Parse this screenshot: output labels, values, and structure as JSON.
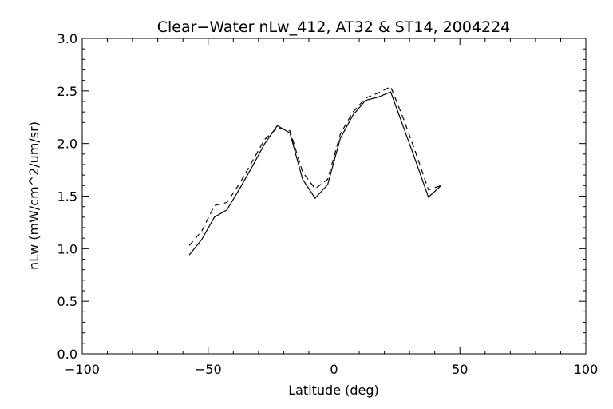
{
  "chart_data": {
    "type": "line",
    "title": "Clear−Water nLw_412, AT32 & ST14, 2004224",
    "xlabel": "Latitude (deg)",
    "ylabel": "nLw (mW/cm^2/um/sr)",
    "xlim": [
      -100,
      100
    ],
    "ylim": [
      0.0,
      3.0
    ],
    "xticks": [
      -100,
      -50,
      0,
      50,
      100
    ],
    "xtick_labels": [
      "−100",
      "−50",
      "0",
      "50",
      "100"
    ],
    "yticks": [
      0.0,
      0.5,
      1.0,
      1.5,
      2.0,
      2.5,
      3.0
    ],
    "ytick_labels": [
      "0.0",
      "0.5",
      "1.0",
      "1.5",
      "2.0",
      "2.5",
      "3.0"
    ],
    "grid": false,
    "series": [
      {
        "style": "solid",
        "x": [
          -57.5,
          -52.5,
          -47.5,
          -42.5,
          -37.5,
          -32.5,
          -27.5,
          -22.5,
          -17.5,
          -12.5,
          -7.5,
          -2.5,
          2.5,
          7.5,
          12.5,
          17.5,
          22.5,
          27.5,
          32.5,
          37.5,
          42.5
        ],
        "y": [
          0.94,
          1.09,
          1.3,
          1.37,
          1.57,
          1.78,
          2.0,
          2.17,
          2.1,
          1.66,
          1.48,
          1.61,
          2.05,
          2.27,
          2.41,
          2.44,
          2.49,
          2.16,
          1.83,
          1.49,
          1.6
        ]
      },
      {
        "style": "dashed",
        "x": [
          -57.5,
          -52.5,
          -47.5,
          -42.5,
          -37.5,
          -32.5,
          -27.5,
          -22.5,
          -17.5,
          -12.5,
          -7.5,
          -2.5,
          2.5,
          7.5,
          12.5,
          17.5,
          22.5,
          27.5,
          32.5,
          37.5,
          42.5
        ],
        "y": [
          1.03,
          1.17,
          1.41,
          1.44,
          1.62,
          1.83,
          2.04,
          2.15,
          2.12,
          1.73,
          1.57,
          1.66,
          2.09,
          2.3,
          2.43,
          2.48,
          2.54,
          2.24,
          1.91,
          1.56,
          1.6
        ]
      }
    ]
  }
}
